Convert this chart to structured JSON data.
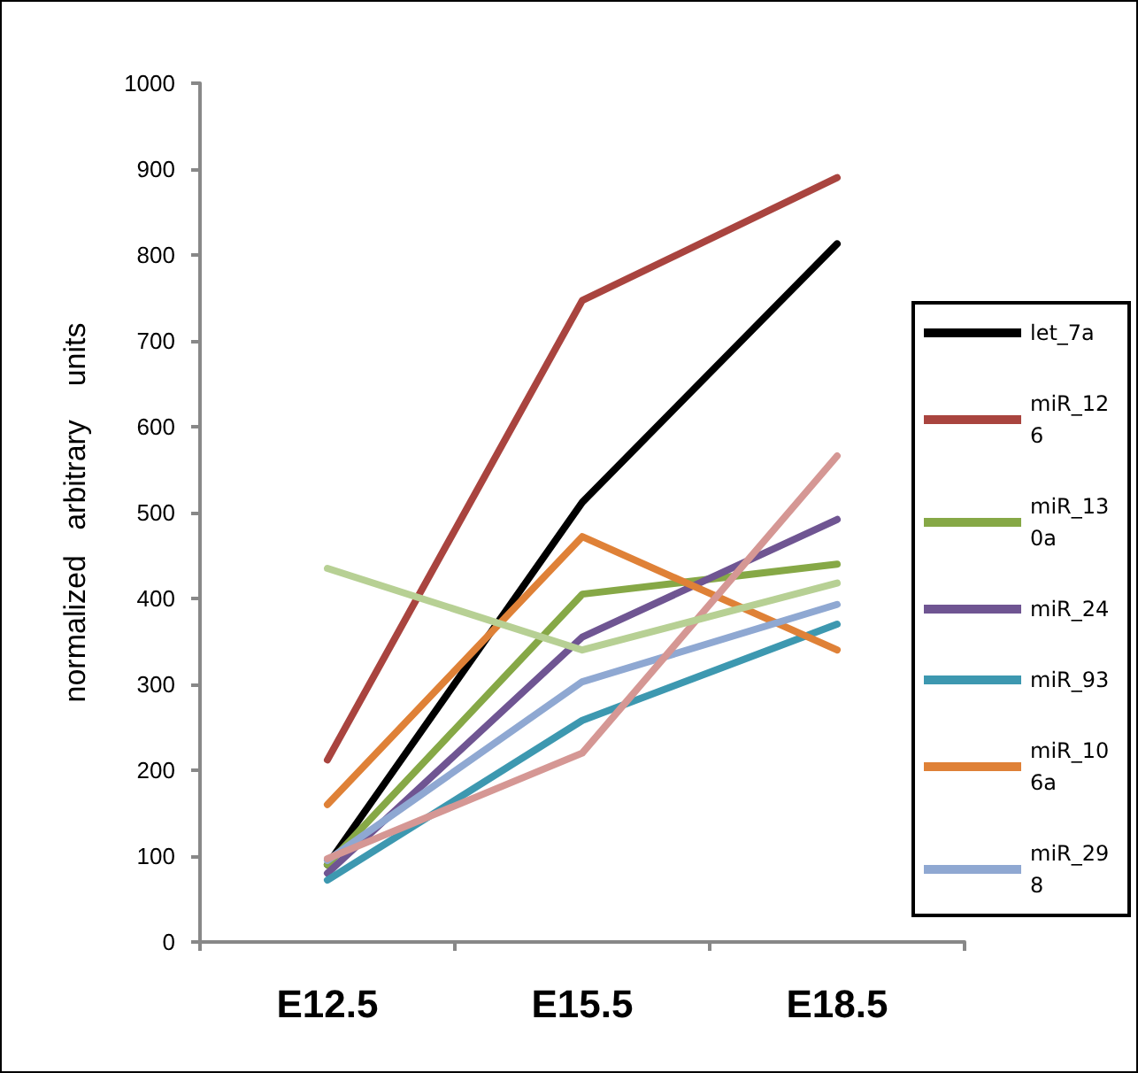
{
  "chart_data": {
    "type": "line",
    "ylabel": "normalized   arbitrary    units",
    "categories": [
      "E12.5",
      "E15.5",
      "E18.5"
    ],
    "ylim": [
      0,
      1000
    ],
    "yticks": [
      0,
      100,
      200,
      300,
      400,
      500,
      600,
      700,
      800,
      900,
      1000
    ],
    "grid": false,
    "legend": "right",
    "marker": "none",
    "line_style": "solid",
    "series": [
      {
        "name": "let_7a",
        "color": "#000000",
        "values": [
          90,
          512,
          813
        ]
      },
      {
        "name": "miR_126",
        "color": "#a9443f",
        "values": [
          212,
          747,
          890
        ]
      },
      {
        "name": "miR_130a",
        "color": "#86a846",
        "values": [
          90,
          405,
          440
        ]
      },
      {
        "name": "miR_24",
        "color": "#6f5592",
        "values": [
          80,
          355,
          492
        ]
      },
      {
        "name": "miR_93",
        "color": "#3d98b0",
        "values": [
          72,
          258,
          370
        ]
      },
      {
        "name": "miR_106a",
        "color": "#df8137",
        "values": [
          160,
          472,
          340
        ]
      },
      {
        "name": "miR_298",
        "color": "#8fa8d2",
        "values": [
          95,
          303,
          393
        ]
      },
      {
        "color": "#d59794",
        "values": [
          97,
          220,
          566
        ]
      },
      {
        "color": "#b7d094",
        "values": [
          435,
          340,
          418
        ]
      }
    ]
  }
}
